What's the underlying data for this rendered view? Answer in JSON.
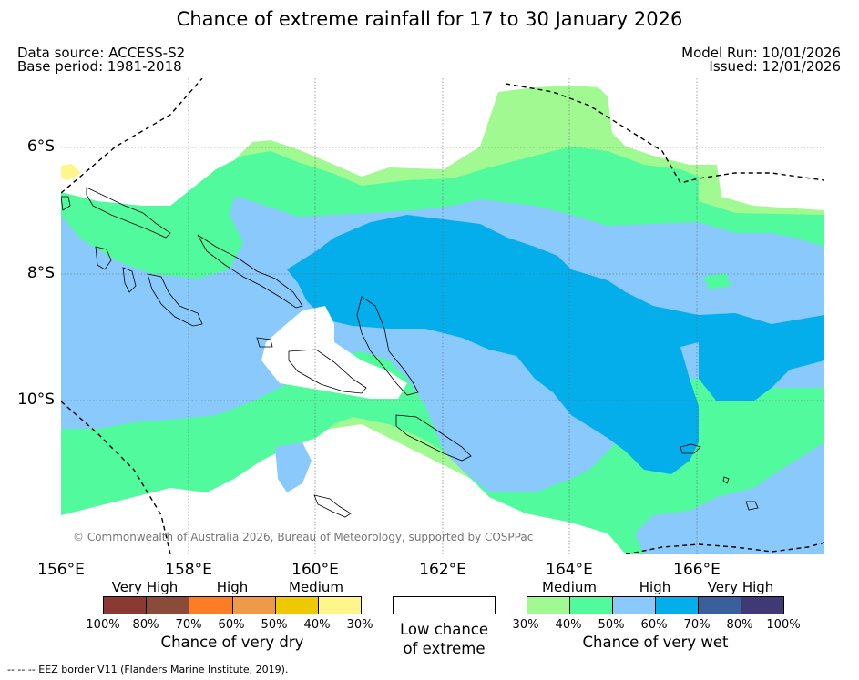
{
  "title": "Chance of extreme rainfall for 17 to 30 January 2026",
  "meta": {
    "data_source": "Data source: ACCESS-S2",
    "base_period": "Base period: 1981-2018",
    "model_run": "Model Run: 10/01/2026",
    "issued": "Issued: 12/01/2026"
  },
  "map": {
    "lat_labels": [
      "6°S",
      "8°S",
      "10°S"
    ],
    "lon_labels": [
      "156°E",
      "158°E",
      "160°E",
      "162°E",
      "164°E",
      "166°E"
    ],
    "copyright": "© Commonwealth of Australia 2026, Bureau of Meteorology, supported by COSPPac",
    "colors": {
      "wet_30": "#a0fa91",
      "wet_40": "#52fa9e",
      "wet_50": "#89c9fb",
      "wet_60": "#03aeeb",
      "dry_30": "#fef68a",
      "ocean_low": "#ffffff"
    }
  },
  "legend": {
    "dry": {
      "headers": [
        "Very High",
        "High",
        "Medium"
      ],
      "ticks": [
        "100%",
        "80%",
        "70%",
        "60%",
        "50%",
        "40%",
        "30%"
      ],
      "colors": [
        "#8b3a33",
        "#8b4b39",
        "#fc7d26",
        "#ed9b48",
        "#eec800",
        "#fef68a"
      ],
      "caption": "Chance of very dry"
    },
    "low": {
      "caption_line1": "Low chance",
      "caption_line2": "of extreme"
    },
    "wet": {
      "headers": [
        "Medium",
        "High",
        "Very High"
      ],
      "ticks": [
        "30%",
        "40%",
        "50%",
        "60%",
        "70%",
        "80%",
        "100%"
      ],
      "colors": [
        "#a0fa91",
        "#52fa9e",
        "#89c9fb",
        "#03aeeb",
        "#3a609b",
        "#3f3976"
      ],
      "caption": "Chance of very wet"
    }
  },
  "footnote": "--  --  -- EEZ border V11 (Flanders Marine Institute, 2019)."
}
